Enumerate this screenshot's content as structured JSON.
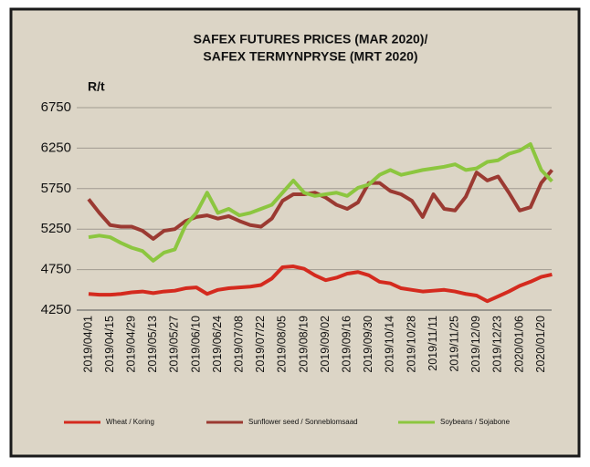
{
  "chart_data": {
    "type": "line",
    "title": [
      "SAFEX FUTURES PRICES (MAR 2020)/",
      "SAFEX TERMYNPRYSE (MRT 2020)"
    ],
    "y_label": "R/t",
    "categories": [
      "2019/04/01",
      null,
      "2019/04/15",
      null,
      "2019/04/29",
      null,
      "2019/05/13",
      null,
      "2019/05/27",
      null,
      "2019/06/10",
      null,
      "2019/06/24",
      null,
      "2019/07/08",
      null,
      "2019/07/22",
      null,
      "2019/08/05",
      null,
      "2019/08/19",
      null,
      "2019/09/02",
      null,
      "2019/09/16",
      null,
      "2019/09/30",
      null,
      "2019/10/14",
      null,
      "2019/10/28",
      null,
      "2019/11/11",
      null,
      "2019/11/25",
      null,
      "2019/12/09",
      null,
      "2019/12/23",
      null,
      "2020/01/06",
      null,
      "2020/01/20",
      null
    ],
    "series": [
      {
        "name": "Wheat / Koring",
        "color": "#d42a1e",
        "values": [
          4450,
          4440,
          4440,
          4450,
          4470,
          4480,
          4460,
          4480,
          4490,
          4520,
          4530,
          4450,
          4500,
          4520,
          4530,
          4540,
          4560,
          4640,
          4780,
          4790,
          4760,
          4680,
          4620,
          4650,
          4700,
          4720,
          4680,
          4600,
          4580,
          4520,
          4500,
          4480,
          4490,
          4500,
          4480,
          4450,
          4430,
          4360,
          4420,
          4480,
          4550,
          4600,
          4660,
          4690
        ]
      },
      {
        "name": "Sunflower seed / Sonneblomsaad",
        "color": "#9b3a32",
        "values": [
          5620,
          5450,
          5300,
          5280,
          5280,
          5230,
          5130,
          5230,
          5250,
          5350,
          5400,
          5420,
          5380,
          5410,
          5350,
          5300,
          5280,
          5380,
          5600,
          5680,
          5680,
          5700,
          5640,
          5550,
          5500,
          5580,
          5820,
          5820,
          5720,
          5680,
          5600,
          5400,
          5680,
          5500,
          5480,
          5650,
          5950,
          5850,
          5900,
          5700,
          5480,
          5520,
          5820,
          5980
        ]
      },
      {
        "name": "Soybeans / Sojabone",
        "color": "#8cc63f",
        "values": [
          5150,
          5170,
          5150,
          5080,
          5020,
          4980,
          4860,
          4960,
          5000,
          5300,
          5450,
          5700,
          5450,
          5500,
          5420,
          5450,
          5500,
          5550,
          5700,
          5850,
          5700,
          5660,
          5680,
          5700,
          5660,
          5760,
          5800,
          5920,
          5980,
          5920,
          5950,
          5980,
          6000,
          6020,
          6050,
          5980,
          6000,
          6080,
          6100,
          6180,
          6220,
          6300,
          5980,
          5840
        ]
      }
    ],
    "ylim": [
      4250,
      6750
    ],
    "yticks": [
      4250,
      4750,
      5250,
      5750,
      6250,
      6750
    ],
    "grid": true
  }
}
